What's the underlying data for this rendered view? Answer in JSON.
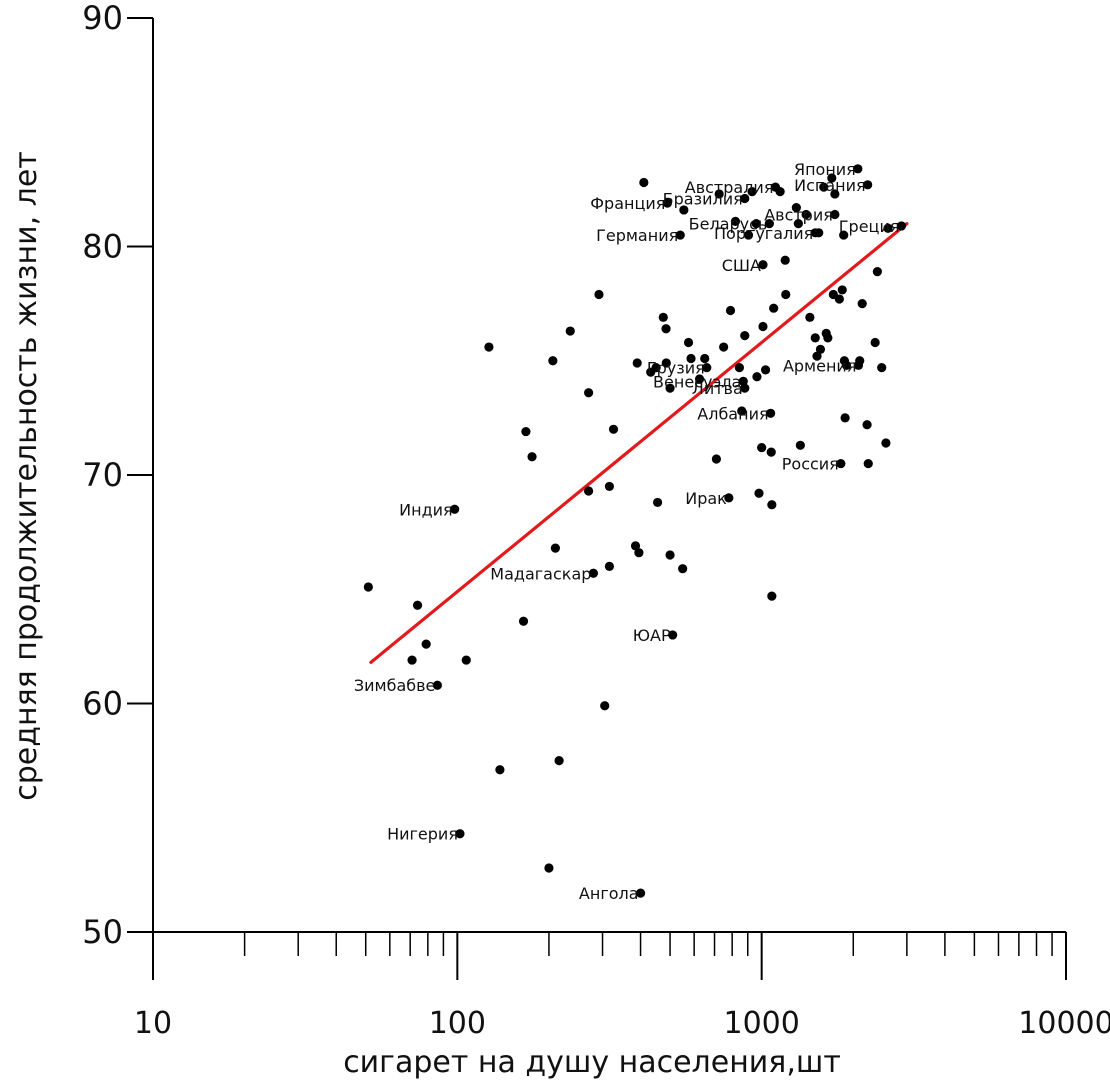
{
  "chart_data": {
    "type": "scatter",
    "xlabel": "сигарет на душу населения,шт",
    "ylabel": "средняя продолжительность жизни, лет",
    "x_scale": "log",
    "xlim": [
      10,
      10000
    ],
    "ylim": [
      50,
      90
    ],
    "x_ticks": [
      10,
      100,
      1000,
      10000
    ],
    "x_tick_labels": [
      "10",
      "100",
      "1000",
      "10000"
    ],
    "y_ticks": [
      50,
      60,
      70,
      80,
      90
    ],
    "y_tick_labels": [
      "50",
      "60",
      "70",
      "80",
      "90"
    ],
    "grid": false,
    "point_color": "#000000",
    "trend_color": "#e31a1c",
    "trendline": {
      "x": [
        52,
        3000
      ],
      "y": [
        61.8,
        81.0
      ]
    },
    "labeled_points": [
      {
        "name": "Япония",
        "x": 2070,
        "y": 83.4
      },
      {
        "name": "Испания",
        "x": 2230,
        "y": 82.7
      },
      {
        "name": "Австралия",
        "x": 1110,
        "y": 82.6
      },
      {
        "name": "Франция",
        "x": 490,
        "y": 81.9
      },
      {
        "name": "Бразилия",
        "x": 880,
        "y": 82.1
      },
      {
        "name": "Австрия",
        "x": 1740,
        "y": 81.4
      },
      {
        "name": "Германия",
        "x": 540,
        "y": 80.5
      },
      {
        "name": "Беларусь",
        "x": 1060,
        "y": 81.0
      },
      {
        "name": "Португалия",
        "x": 1500,
        "y": 80.6
      },
      {
        "name": "Греция",
        "x": 2880,
        "y": 80.9
      },
      {
        "name": "США",
        "x": 1010,
        "y": 79.2
      },
      {
        "name": "Армения",
        "x": 2080,
        "y": 74.8
      },
      {
        "name": "Грузия",
        "x": 660,
        "y": 74.7
      },
      {
        "name": "Венесуэла",
        "x": 870,
        "y": 74.1
      },
      {
        "name": "Литва",
        "x": 880,
        "y": 73.8
      },
      {
        "name": "Албания",
        "x": 1070,
        "y": 72.7
      },
      {
        "name": "Россия",
        "x": 1820,
        "y": 70.5
      },
      {
        "name": "Ирак",
        "x": 780,
        "y": 69.0
      },
      {
        "name": "Индия",
        "x": 98,
        "y": 68.5
      },
      {
        "name": "Мадагаскар",
        "x": 280,
        "y": 65.7
      },
      {
        "name": "ЮАР",
        "x": 510,
        "y": 63.0
      },
      {
        "name": "Зимбабве",
        "x": 86,
        "y": 60.8
      },
      {
        "name": "Нигерия",
        "x": 102,
        "y": 54.3
      },
      {
        "name": "Ангола",
        "x": 400,
        "y": 51.7
      }
    ],
    "unlabeled_points": [
      {
        "x": 51,
        "y": 65.1
      },
      {
        "x": 74,
        "y": 64.3
      },
      {
        "x": 79,
        "y": 62.6
      },
      {
        "x": 71,
        "y": 61.9
      },
      {
        "x": 107,
        "y": 61.9
      },
      {
        "x": 127,
        "y": 75.6
      },
      {
        "x": 165,
        "y": 63.6
      },
      {
        "x": 168,
        "y": 71.9
      },
      {
        "x": 176,
        "y": 70.8
      },
      {
        "x": 138,
        "y": 57.1
      },
      {
        "x": 200,
        "y": 52.8
      },
      {
        "x": 206,
        "y": 75.0
      },
      {
        "x": 210,
        "y": 66.8
      },
      {
        "x": 216,
        "y": 57.5
      },
      {
        "x": 235,
        "y": 76.3
      },
      {
        "x": 270,
        "y": 69.3
      },
      {
        "x": 270,
        "y": 73.6
      },
      {
        "x": 292,
        "y": 77.9
      },
      {
        "x": 305,
        "y": 59.9
      },
      {
        "x": 316,
        "y": 69.5
      },
      {
        "x": 316,
        "y": 66.0
      },
      {
        "x": 326,
        "y": 72.0
      },
      {
        "x": 385,
        "y": 66.9
      },
      {
        "x": 390,
        "y": 74.9
      },
      {
        "x": 395,
        "y": 66.6
      },
      {
        "x": 410,
        "y": 82.8
      },
      {
        "x": 432,
        "y": 74.5
      },
      {
        "x": 450,
        "y": 74.7
      },
      {
        "x": 455,
        "y": 68.8
      },
      {
        "x": 475,
        "y": 76.9
      },
      {
        "x": 485,
        "y": 76.4
      },
      {
        "x": 486,
        "y": 74.9
      },
      {
        "x": 500,
        "y": 66.5
      },
      {
        "x": 500,
        "y": 73.8
      },
      {
        "x": 555,
        "y": 81.6
      },
      {
        "x": 550,
        "y": 65.9
      },
      {
        "x": 575,
        "y": 75.8
      },
      {
        "x": 586,
        "y": 75.1
      },
      {
        "x": 625,
        "y": 74.2
      },
      {
        "x": 650,
        "y": 75.1
      },
      {
        "x": 710,
        "y": 70.7
      },
      {
        "x": 725,
        "y": 82.3
      },
      {
        "x": 750,
        "y": 75.6
      },
      {
        "x": 790,
        "y": 77.2
      },
      {
        "x": 820,
        "y": 81.1
      },
      {
        "x": 845,
        "y": 74.7
      },
      {
        "x": 860,
        "y": 72.8
      },
      {
        "x": 880,
        "y": 76.1
      },
      {
        "x": 905,
        "y": 80.5
      },
      {
        "x": 930,
        "y": 82.4
      },
      {
        "x": 960,
        "y": 81.0
      },
      {
        "x": 965,
        "y": 74.3
      },
      {
        "x": 980,
        "y": 69.2
      },
      {
        "x": 1000,
        "y": 71.2
      },
      {
        "x": 1010,
        "y": 76.5
      },
      {
        "x": 1030,
        "y": 74.6
      },
      {
        "x": 1075,
        "y": 71.0
      },
      {
        "x": 1080,
        "y": 68.7
      },
      {
        "x": 1080,
        "y": 64.7
      },
      {
        "x": 1095,
        "y": 77.3
      },
      {
        "x": 1150,
        "y": 82.4
      },
      {
        "x": 1195,
        "y": 79.4
      },
      {
        "x": 1200,
        "y": 77.9
      },
      {
        "x": 1300,
        "y": 81.7
      },
      {
        "x": 1320,
        "y": 81.0
      },
      {
        "x": 1340,
        "y": 71.3
      },
      {
        "x": 1400,
        "y": 81.4
      },
      {
        "x": 1440,
        "y": 76.9
      },
      {
        "x": 1500,
        "y": 76.0
      },
      {
        "x": 1520,
        "y": 75.2
      },
      {
        "x": 1540,
        "y": 80.6
      },
      {
        "x": 1560,
        "y": 75.5
      },
      {
        "x": 1600,
        "y": 82.6
      },
      {
        "x": 1630,
        "y": 76.2
      },
      {
        "x": 1650,
        "y": 76.0
      },
      {
        "x": 1700,
        "y": 83.0
      },
      {
        "x": 1720,
        "y": 77.9
      },
      {
        "x": 1740,
        "y": 82.3
      },
      {
        "x": 1800,
        "y": 77.7
      },
      {
        "x": 1840,
        "y": 78.1
      },
      {
        "x": 1860,
        "y": 80.5
      },
      {
        "x": 1870,
        "y": 75.0
      },
      {
        "x": 1880,
        "y": 72.5
      },
      {
        "x": 1900,
        "y": 74.8
      },
      {
        "x": 2100,
        "y": 75.0
      },
      {
        "x": 2140,
        "y": 77.5
      },
      {
        "x": 2220,
        "y": 72.2
      },
      {
        "x": 2240,
        "y": 70.5
      },
      {
        "x": 2360,
        "y": 75.8
      },
      {
        "x": 2400,
        "y": 78.9
      },
      {
        "x": 2480,
        "y": 74.7
      },
      {
        "x": 2560,
        "y": 71.4
      },
      {
        "x": 2600,
        "y": 80.8
      }
    ]
  }
}
